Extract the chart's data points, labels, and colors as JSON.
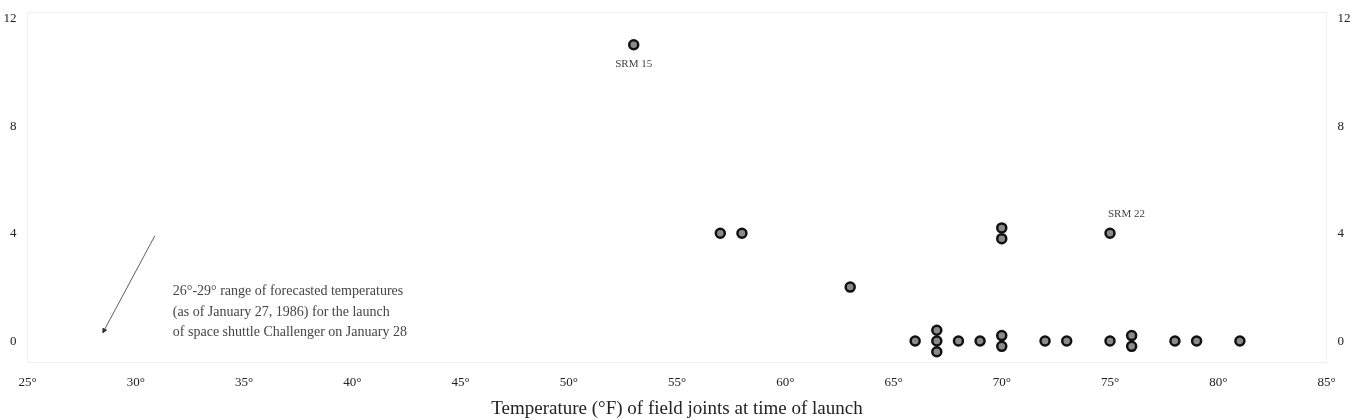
{
  "chart_data": {
    "type": "scatter",
    "xlabel": "Temperature (°F) of field joints at time of launch",
    "x": [
      53,
      57,
      58,
      63,
      70,
      70,
      75,
      66,
      67,
      67,
      67,
      68,
      69,
      70,
      70,
      72,
      73,
      75,
      76,
      76,
      78,
      79,
      81
    ],
    "series": [
      {
        "color": "#8a8a8a",
        "values": [
          11,
          4,
          4,
          2,
          4.2,
          3.8,
          4,
          0,
          0.4,
          0,
          -0.4,
          0,
          0,
          0.2,
          -0.2,
          0,
          0,
          0,
          0.2,
          -0.2,
          0,
          0,
          0
        ]
      }
    ],
    "marker": "circle",
    "xlim": [
      25,
      85
    ],
    "xticks": [
      {
        "value": 25,
        "label": "25°"
      },
      {
        "value": 30,
        "label": "30°"
      },
      {
        "value": 35,
        "label": "35°"
      },
      {
        "value": 40,
        "label": "40°"
      },
      {
        "value": 45,
        "label": "45°"
      },
      {
        "value": 50,
        "label": "50°"
      },
      {
        "value": 55,
        "label": "55°"
      },
      {
        "value": 60,
        "label": "60°"
      },
      {
        "value": 65,
        "label": "65°"
      },
      {
        "value": 70,
        "label": "70°"
      },
      {
        "value": 75,
        "label": "75°"
      },
      {
        "value": 80,
        "label": "80°"
      },
      {
        "value": 85,
        "label": "85°"
      }
    ],
    "ylim": [
      -0.8,
      12.2
    ],
    "yticks": [
      0,
      4,
      8,
      12
    ],
    "y2lim": [
      -0.8,
      12.2
    ],
    "y2ticks": [
      0,
      4,
      8,
      12
    ],
    "grid": false,
    "annotations": [
      {
        "text": "SRM 15",
        "x": 53,
        "y": 11
      },
      {
        "text": "SRM 22",
        "x": 75,
        "y": 4
      },
      "26°-29° range of forecasted temperatures\n(as of January 27, 1986) for the launch\nof space shuttle Challenger on January 28"
    ]
  }
}
